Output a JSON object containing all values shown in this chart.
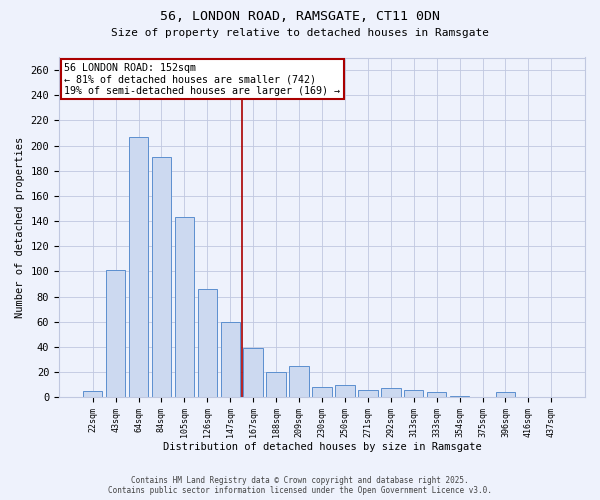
{
  "title_line1": "56, LONDON ROAD, RAMSGATE, CT11 0DN",
  "title_line2": "Size of property relative to detached houses in Ramsgate",
  "xlabel": "Distribution of detached houses by size in Ramsgate",
  "ylabel": "Number of detached properties",
  "categories": [
    "22sqm",
    "43sqm",
    "64sqm",
    "84sqm",
    "105sqm",
    "126sqm",
    "147sqm",
    "167sqm",
    "188sqm",
    "209sqm",
    "230sqm",
    "250sqm",
    "271sqm",
    "292sqm",
    "313sqm",
    "333sqm",
    "354sqm",
    "375sqm",
    "396sqm",
    "416sqm",
    "437sqm"
  ],
  "values": [
    5,
    101,
    207,
    191,
    143,
    86,
    60,
    39,
    20,
    25,
    8,
    10,
    6,
    7,
    6,
    4,
    1,
    0,
    4,
    0,
    0
  ],
  "bar_color": "#ccd9f0",
  "bar_edge_color": "#5b8fcf",
  "vline_x": 6.5,
  "vline_color": "#aa0000",
  "annotation_text": "56 LONDON ROAD: 152sqm\n← 81% of detached houses are smaller (742)\n19% of semi-detached houses are larger (169) →",
  "annotation_box_color": "#ffffff",
  "annotation_box_edge": "#aa0000",
  "ylim": [
    0,
    270
  ],
  "yticks": [
    0,
    20,
    40,
    60,
    80,
    100,
    120,
    140,
    160,
    180,
    200,
    220,
    240,
    260
  ],
  "footer_line1": "Contains HM Land Registry data © Crown copyright and database right 2025.",
  "footer_line2": "Contains public sector information licensed under the Open Government Licence v3.0.",
  "bg_color": "#eef2fc",
  "grid_color": "#c0c8e0"
}
